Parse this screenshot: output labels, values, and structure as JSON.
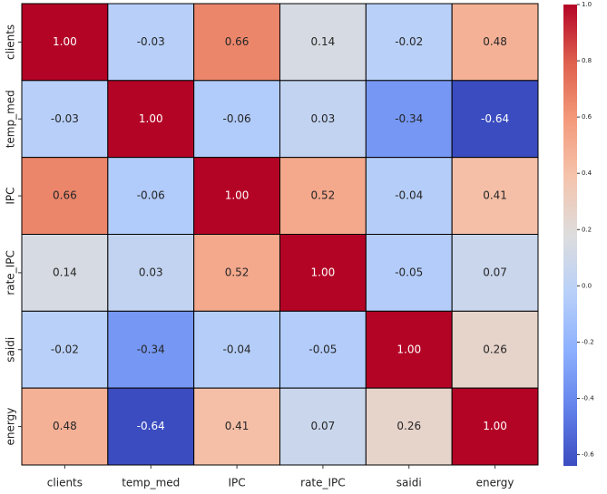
{
  "chart_data": {
    "type": "heatmap",
    "categories": [
      "clients",
      "temp_med",
      "IPC",
      "rate_IPC",
      "saidi",
      "energy"
    ],
    "values": [
      [
        1,
        -0.03,
        0.66,
        0.14,
        -0.02,
        0.48
      ],
      [
        -0.03,
        1,
        -0.06,
        0.03,
        -0.34,
        -0.64
      ],
      [
        0.66,
        -0.06,
        1,
        0.52,
        -0.04,
        0.41
      ],
      [
        0.14,
        0.03,
        0.52,
        1,
        -0.05,
        0.07
      ],
      [
        -0.02,
        -0.34,
        -0.04,
        -0.05,
        1,
        0.26
      ],
      [
        0.48,
        -0.64,
        0.41,
        0.07,
        0.26,
        1
      ]
    ],
    "value_labels": [
      [
        "1.00",
        "-0.03",
        "0.66",
        "0.14",
        "-0.02",
        "0.48"
      ],
      [
        "-0.03",
        "1.00",
        "-0.06",
        "0.03",
        "-0.34",
        "-0.64"
      ],
      [
        "0.66",
        "-0.06",
        "1.00",
        "0.52",
        "-0.04",
        "0.41"
      ],
      [
        "0.14",
        "0.03",
        "0.52",
        "1.00",
        "-0.05",
        "0.07"
      ],
      [
        "-0.02",
        "-0.34",
        "-0.04",
        "-0.05",
        "1.00",
        "0.26"
      ],
      [
        "0.48",
        "-0.64",
        "0.41",
        "0.07",
        "0.26",
        "1.00"
      ]
    ],
    "colormap": "coolwarm",
    "zlim": [
      -0.64,
      1
    ],
    "zticks": [
      {
        "value": 1,
        "label": "1.0"
      },
      0.8,
      0.6,
      0.4,
      0.2,
      {
        "value": 0,
        "label": "0.0"
      },
      -0.2,
      -0.4,
      -0.6
    ]
  }
}
